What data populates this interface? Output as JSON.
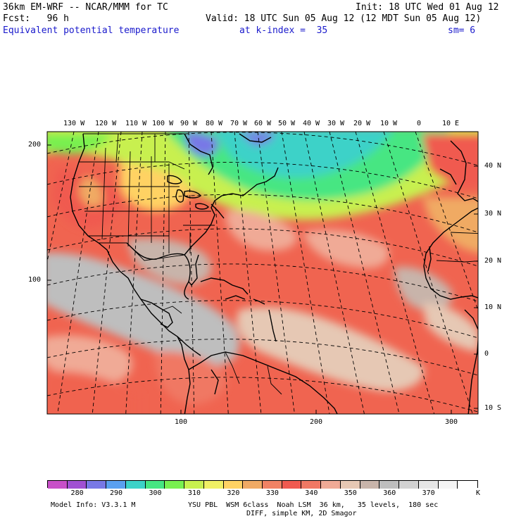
{
  "header": {
    "model": "36km EM-WRF -- NCAR/MMM for TC",
    "init": "Init: 18 UTC Wed 01 Aug 12",
    "fcst": "Fcst:   96 h",
    "valid": "Valid: 18 UTC Sun 05 Aug 12 (12 MDT Sun 05 Aug 12)",
    "field": "Equivalent potential temperature",
    "level": "at k-index =  35",
    "smooth": "sm= 6"
  },
  "map": {
    "lon_labels": [
      "130 W",
      "120 W",
      "110 W",
      "100 W",
      "90 W",
      "80 W",
      "70 W",
      "60 W",
      "50 W",
      "40 W",
      "30 W",
      "20 W",
      "10 W",
      "0",
      "10 E"
    ],
    "lat_labels": [
      "40 N",
      "30 N",
      "20 N",
      "10 N",
      "0",
      "10 S"
    ],
    "grid_x_labels": [
      "100",
      "200",
      "300"
    ],
    "grid_y_labels": [
      "200",
      "100"
    ]
  },
  "colorbar": {
    "labels": [
      "280",
      "290",
      "300",
      "310",
      "320",
      "330",
      "340",
      "350",
      "360",
      "370"
    ],
    "unit": "K",
    "colors": [
      "#c850c8",
      "#a050d2",
      "#7878e6",
      "#5aa0f0",
      "#3cd2c8",
      "#46e682",
      "#78f050",
      "#c8f050",
      "#f0f064",
      "#ffd264",
      "#f0aa64",
      "#f08264",
      "#f05a50",
      "#f07864",
      "#f0aa96",
      "#e6c8b4",
      "#c8b4aa",
      "#bebebe",
      "#d2d2d2",
      "#e6e6e6",
      "#f5f5f5",
      "#ffffff"
    ]
  },
  "footer": {
    "info1": "Model Info: V3.3.1 M",
    "info2": "YSU PBL  WSM 6class  Noah LSM  36 km,   35 levels,  180 sec",
    "info3": "DIFF, simple KM, 2D Smagor"
  }
}
